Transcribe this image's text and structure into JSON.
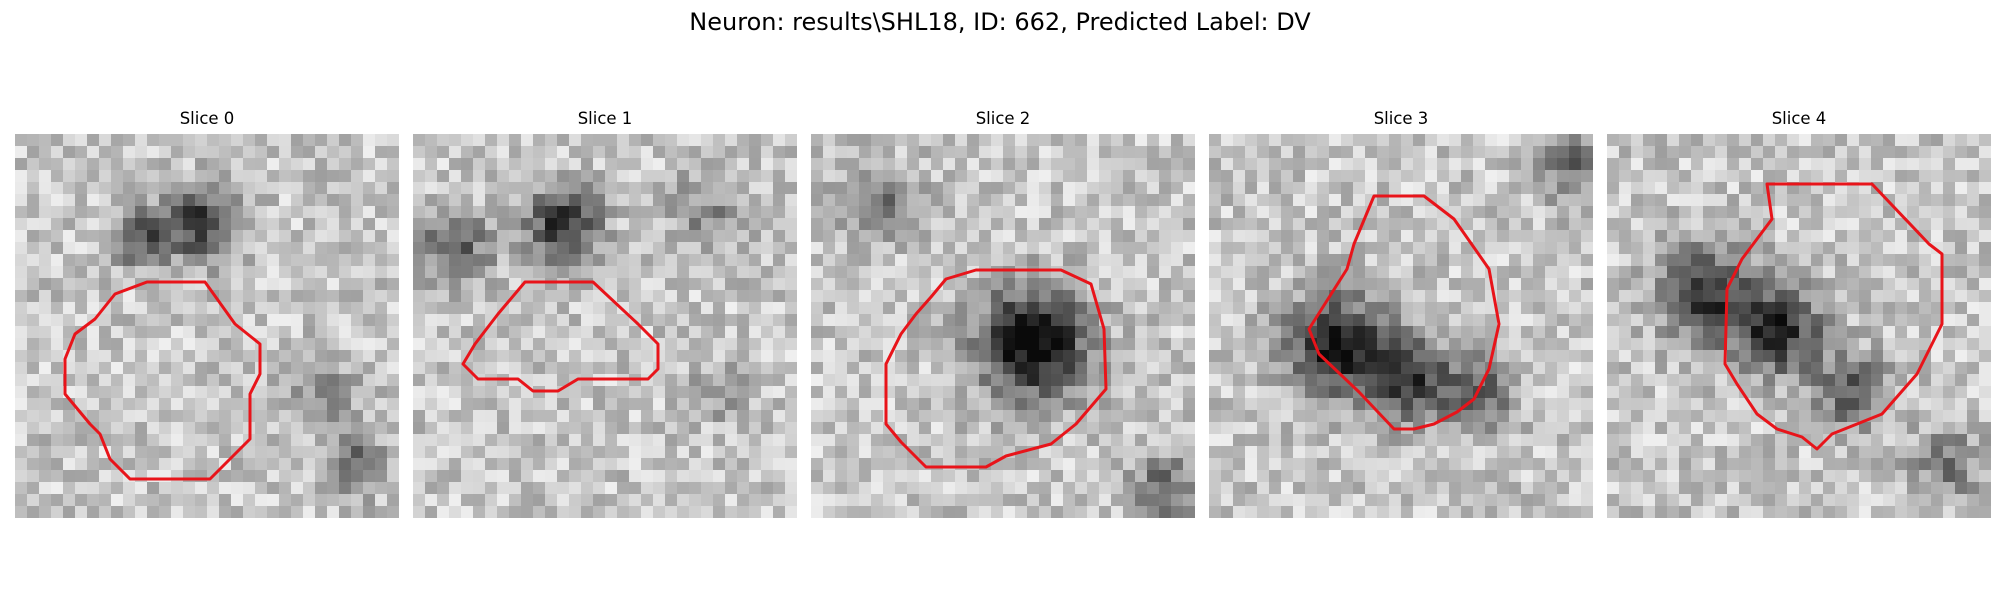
{
  "figure": {
    "title": "Neuron: results\\SHL18, ID: 662, Predicted Label: DV"
  },
  "panels": [
    {
      "title": "Slice 0"
    },
    {
      "title": "Slice 1"
    },
    {
      "title": "Slice 2"
    },
    {
      "title": "Slice 3"
    },
    {
      "title": "Slice 4"
    }
  ],
  "colors": {
    "contour": "#e8141a",
    "background": "#ffffff"
  }
}
